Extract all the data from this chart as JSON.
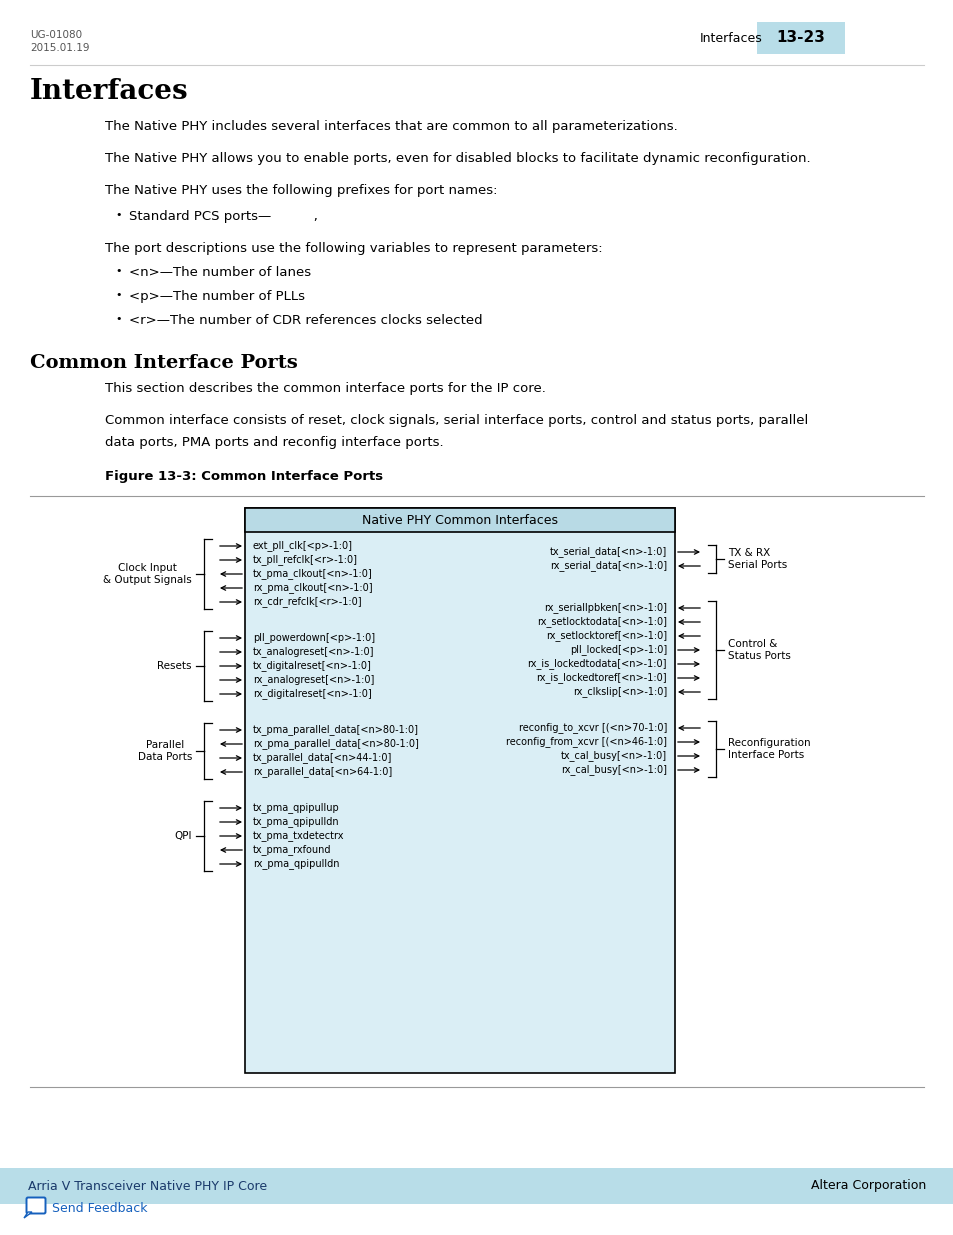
{
  "page_id": "UG-01080\n2015.01.19",
  "section_label": "Interfaces",
  "page_num": "13-23",
  "page_num_bg": "#b8dde8",
  "title1": "Interfaces",
  "para1": "The Native PHY includes several interfaces that are common to all parameterizations.",
  "para2": "The Native PHY allows you to enable ports, even for disabled blocks to facilitate dynamic reconfiguration.",
  "para3": "The Native PHY uses the following prefixes for port names:",
  "bullet1": "Standard PCS ports—          ,",
  "para4": "The port descriptions use the following variables to represent parameters:",
  "bullet2": "<n>—The number of lanes",
  "bullet3": "<p>—The number of PLLs",
  "bullet4": "<r>—The number of CDR references clocks selected",
  "title2": "Common Interface Ports",
  "para5": "This section describes the common interface ports for the IP core.",
  "para6a": "Common interface consists of reset, clock signals, serial interface ports, control and status ports, parallel",
  "para6b": "data ports, PMA ports and reconfig interface ports.",
  "fig_caption": "Figure 13-3: Common Interface Ports",
  "footer_left": "Arria V Transceiver Native PHY IP Core",
  "footer_right": "Altera Corporation",
  "footer_bg": "#b8dde8",
  "send_feedback": "Send Feedback",
  "link_color": "#1560bd",
  "box_title": "Native PHY Common Interfaces",
  "box_bg": "#daeef5",
  "box_border": "#000000",
  "left_ports": [
    [
      "ext_pll_clk[<p>-1:0]",
      "in"
    ],
    [
      "tx_pll_refclk[<r>-1:0]",
      "in"
    ],
    [
      "tx_pma_clkout[<n>-1:0]",
      "out"
    ],
    [
      "rx_pma_clkout[<n>-1:0]",
      "out"
    ],
    [
      "rx_cdr_refclk[<r>-1:0]",
      "in"
    ]
  ],
  "left_group1_label": "Clock Input\n& Output Signals",
  "left_ports2": [
    [
      "pll_powerdown[<p>-1:0]",
      "in"
    ],
    [
      "tx_analogreset[<n>-1:0]",
      "in"
    ],
    [
      "tx_digitalreset[<n>-1:0]",
      "in"
    ],
    [
      "rx_analogreset[<n>-1:0]",
      "in"
    ],
    [
      "rx_digitalreset[<n>-1:0]",
      "in"
    ]
  ],
  "left_group2_label": "Resets",
  "left_ports3": [
    [
      "tx_pma_parallel_data[<n>80-1:0]",
      "in"
    ],
    [
      "rx_pma_parallel_data[<n>80-1:0]",
      "out"
    ],
    [
      "tx_parallel_data[<n>44-1:0]",
      "in"
    ],
    [
      "rx_parallel_data[<n>64-1:0]",
      "out"
    ]
  ],
  "left_group3_label": "Parallel\nData Ports",
  "left_ports4": [
    [
      "tx_pma_qpipullup",
      "in"
    ],
    [
      "tx_pma_qpipulldn",
      "in"
    ],
    [
      "tx_pma_txdetectrx",
      "in"
    ],
    [
      "tx_pma_rxfound",
      "out"
    ],
    [
      "rx_pma_qpipulldn",
      "in"
    ]
  ],
  "left_group4_label": "QPI",
  "right_ports1": [
    [
      "tx_serial_data[<n>-1:0]",
      "out"
    ],
    [
      "rx_serial_data[<n>-1:0]",
      "in"
    ]
  ],
  "right_group1_label": "TX & RX\nSerial Ports",
  "right_ports2": [
    [
      "rx_seriallpbken[<n>-1:0]",
      "in"
    ],
    [
      "rx_setlocktodata[<n>-1:0]",
      "in"
    ],
    [
      "rx_setlocktoref[<n>-1:0]",
      "in"
    ],
    [
      "pll_locked[<p>-1:0]",
      "out"
    ],
    [
      "rx_is_lockedtodata[<n>-1:0]",
      "out"
    ],
    [
      "rx_is_lockedtoref[<n>-1:0]",
      "out"
    ],
    [
      "rx_clkslip[<n>-1:0]",
      "in"
    ]
  ],
  "right_group2_label": "Control &\nStatus Ports",
  "right_ports3": [
    [
      "reconfig_to_xcvr [(<n>70-1:0]",
      "in"
    ],
    [
      "reconfig_from_xcvr [(<n>46-1:0]",
      "out"
    ],
    [
      "tx_cal_busy[<n>-1:0]",
      "out"
    ],
    [
      "rx_cal_busy[<n>-1:0]",
      "out"
    ]
  ],
  "right_group3_label": "Reconfiguration\nInterface Ports"
}
